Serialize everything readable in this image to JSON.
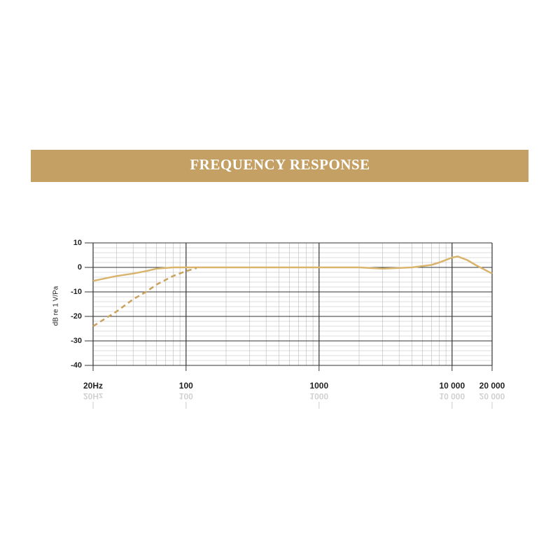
{
  "chart_data": {
    "type": "line",
    "title": "FREQUENCY RESPONSE",
    "y_label": "dB re 1 V/Pa",
    "xscale": "log",
    "xlim": [
      20,
      20000
    ],
    "ylim": [
      -40,
      10
    ],
    "xticks": [
      {
        "value": 20,
        "label": "20Hz"
      },
      100,
      1000,
      {
        "value": 10000,
        "label": "10 000"
      },
      {
        "value": 20000,
        "label": "20 000"
      }
    ],
    "yticks": [
      10,
      0,
      -10,
      -20,
      -30,
      -40
    ],
    "x_minor_ticks": [
      30,
      40,
      50,
      60,
      70,
      80,
      90,
      200,
      300,
      400,
      500,
      600,
      700,
      800,
      900,
      2000,
      3000,
      4000,
      5000,
      6000,
      7000,
      8000,
      9000
    ],
    "y_minor_ticks": [
      8,
      6,
      4,
      2,
      -2,
      -4,
      -6,
      -8,
      -12,
      -14,
      -16,
      -18,
      -22,
      -24,
      -26,
      -28,
      -32,
      -34,
      -36,
      -38
    ],
    "grid": true,
    "series": [
      {
        "color": "#d8b46c",
        "dash": false,
        "x": [
          20,
          30,
          40,
          50,
          60,
          80,
          100,
          200,
          500,
          1000,
          2000,
          3000,
          5000,
          7000,
          8000,
          10000,
          11000,
          13000,
          15000,
          20000
        ],
        "values": [
          -5.5,
          -3.5,
          -2.5,
          -1.5,
          -0.5,
          0,
          0,
          0,
          0,
          0,
          0,
          -0.5,
          0,
          1,
          2,
          4,
          4.5,
          3,
          1,
          -2.5
        ]
      },
      {
        "color": "#c9a35e",
        "dash": true,
        "x": [
          20,
          30,
          40,
          50,
          60,
          80,
          100,
          120
        ],
        "values": [
          -24,
          -18,
          -13,
          -10,
          -7,
          -3.5,
          -1.5,
          -0.3
        ]
      }
    ]
  }
}
